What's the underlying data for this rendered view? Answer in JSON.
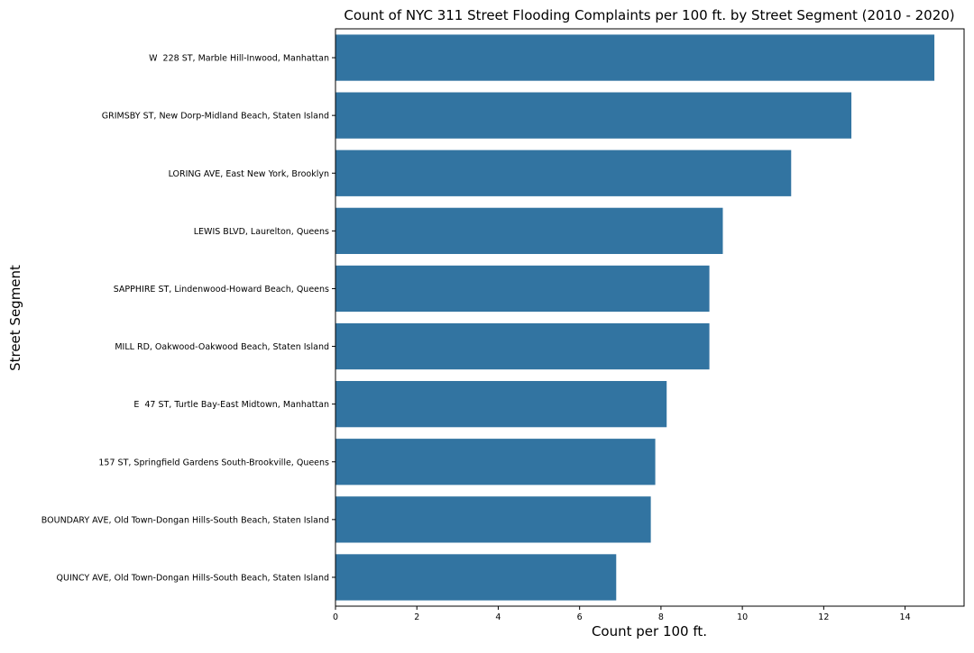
{
  "chart_data": {
    "type": "bar",
    "orientation": "horizontal",
    "title": "Count of NYC 311 Street Flooding Complaints per 100 ft. by Street Segment (2010 - 2020)",
    "xlabel": "Count per 100 ft.",
    "ylabel": "Street Segment",
    "categories": [
      "W  228 ST, Marble Hill-Inwood, Manhattan",
      "GRIMSBY ST, New Dorp-Midland Beach, Staten Island",
      "LORING AVE, East New York, Brooklyn",
      "LEWIS BLVD, Laurelton, Queens",
      "SAPPHIRE ST, Lindenwood-Howard Beach, Queens",
      "MILL RD, Oakwood-Oakwood Beach, Staten Island",
      "E  47 ST, Turtle Bay-East Midtown, Manhattan",
      "157 ST, Springfield Gardens South-Brookville, Queens",
      "BOUNDARY AVE, Old Town-Dongan Hills-South Beach, Staten Island",
      "QUINCY AVE, Old Town-Dongan Hills-South Beach, Staten Island"
    ],
    "values": [
      14.72,
      12.68,
      11.2,
      9.52,
      9.19,
      9.19,
      8.14,
      7.86,
      7.75,
      6.9
    ],
    "xlim": [
      0,
      15.45
    ],
    "xticks": [
      0,
      2,
      4,
      6,
      8,
      10,
      12,
      14
    ],
    "grid": false,
    "bar_color": "#3274a1"
  }
}
